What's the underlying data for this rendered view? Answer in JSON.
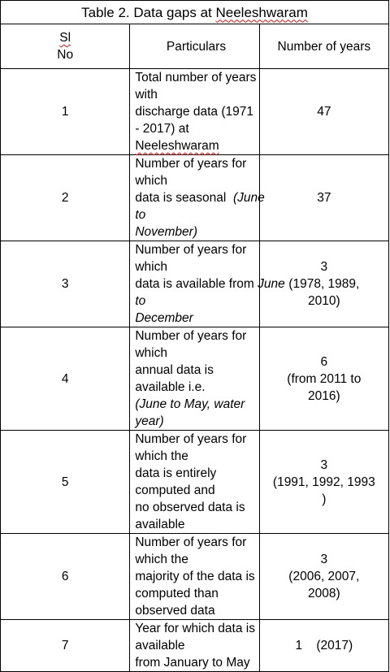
{
  "table": {
    "caption_prefix": "Table 2. Data gaps at ",
    "caption_place": "Neeleshwaram",
    "headers": {
      "sl_line1": "Sl",
      "sl_line2": "No",
      "particulars": "Particulars",
      "years": "Number of years"
    },
    "rows": [
      {
        "sl": "1",
        "p1": "Total number of years with",
        "p2": "discharge data (1971 - 2017) at",
        "p3": "Neeleshwaram",
        "n1": "47"
      },
      {
        "sl": "2",
        "p1": "Number of years for which",
        "p2a": "data is seasonal  ",
        "p2b": "(June to",
        "p3": "November)",
        "n1": "37"
      },
      {
        "sl": "3",
        "p1": "Number of years for which",
        "p2a": "data is available from ",
        "p2b": "June to",
        "p3": "December",
        "n1": "3",
        "n2": "(1978, 1989,",
        "n3": "2010)"
      },
      {
        "sl": "4",
        "p1": "Number of years for which",
        "p2": "annual data is available i.e.",
        "p3": "(June to May, water year)",
        "n1": "6",
        "n2": "(from 2011 to",
        "n3": "2016)"
      },
      {
        "sl": "5",
        "p1": "Number of years for which the",
        "p2": "data is entirely computed and",
        "p3": "no observed data is available",
        "n1": "3",
        "n2": "(1991, 1992, 1993",
        "n3": ")"
      },
      {
        "sl": "6",
        "p1": "Number of years for which the",
        "p2": "majority of the data is",
        "p3": "computed than observed data",
        "n1": "3",
        "n2": "(2006, 2007,",
        "n3": "2008)"
      },
      {
        "sl": "7",
        "p1": "Year for which data is available",
        "p2": "from January to May",
        "n1": "1    (2017)"
      }
    ]
  }
}
